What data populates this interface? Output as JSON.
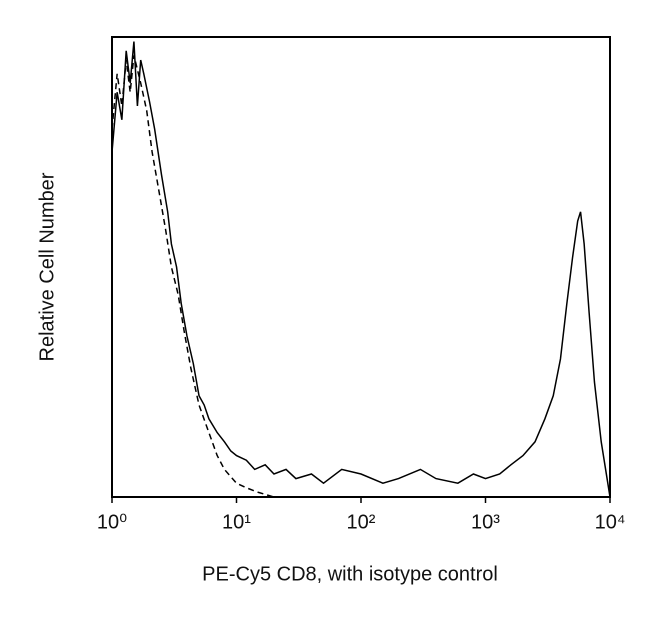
{
  "chart_data": {
    "type": "line",
    "xlabel": "PE-Cy5 CD8, with isotype control",
    "ylabel": "Relative Cell Number",
    "xscale": "log",
    "xlim": [
      1,
      10000
    ],
    "xticks": [
      {
        "value": 1,
        "label": "10⁰"
      },
      {
        "value": 10,
        "label": "10¹"
      },
      {
        "value": 100,
        "label": "10²"
      },
      {
        "value": 1000,
        "label": "10³"
      },
      {
        "value": 10000,
        "label": "10⁴"
      }
    ],
    "ylim": [
      0,
      100
    ],
    "series": [
      {
        "color": "#000000",
        "linestyle": "solid",
        "x": [
          1,
          1.1,
          1.2,
          1.3,
          1.4,
          1.5,
          1.6,
          1.7,
          1.8,
          2,
          2.2,
          2.5,
          2.8,
          3,
          3.3,
          3.6,
          4,
          4.5,
          5,
          5.5,
          6,
          7,
          8,
          9,
          10,
          12,
          14,
          17,
          20,
          25,
          30,
          40,
          50,
          70,
          100,
          150,
          200,
          300,
          400,
          600,
          800,
          1000,
          1300,
          1600,
          2000,
          2500,
          3000,
          3500,
          4000,
          4500,
          5000,
          5500,
          5800,
          6200,
          6800,
          7500,
          8500,
          10000
        ],
        "values": [
          75,
          88,
          82,
          97,
          90,
          99,
          85,
          95,
          92,
          86,
          80,
          70,
          62,
          55,
          50,
          42,
          35,
          29,
          22,
          20,
          17,
          14,
          12,
          10,
          9,
          8,
          6,
          7,
          5,
          6,
          4,
          5,
          3,
          6,
          5,
          3,
          4,
          6,
          4,
          3,
          5,
          4,
          5,
          7,
          9,
          12,
          17,
          22,
          30,
          42,
          52,
          60,
          62,
          55,
          40,
          25,
          12,
          0
        ]
      },
      {
        "color": "#000000",
        "linestyle": "dashed",
        "x": [
          1,
          1.1,
          1.2,
          1.3,
          1.4,
          1.5,
          1.7,
          1.9,
          2.1,
          2.4,
          2.7,
          3,
          3.4,
          3.8,
          4.3,
          5,
          6,
          7,
          8,
          10,
          12,
          15,
          20,
          30
        ],
        "values": [
          80,
          92,
          85,
          95,
          88,
          96,
          90,
          84,
          75,
          66,
          58,
          50,
          44,
          36,
          28,
          20,
          14,
          9,
          6,
          3,
          2,
          1,
          0,
          0
        ]
      }
    ]
  }
}
